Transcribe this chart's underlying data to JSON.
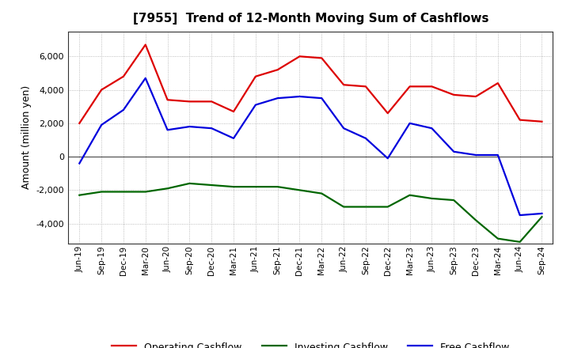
{
  "title": "[7955]  Trend of 12-Month Moving Sum of Cashflows",
  "ylabel": "Amount (million yen)",
  "xlabels": [
    "Jun-19",
    "Sep-19",
    "Dec-19",
    "Mar-20",
    "Jun-20",
    "Sep-20",
    "Dec-20",
    "Mar-21",
    "Jun-21",
    "Sep-21",
    "Dec-21",
    "Mar-22",
    "Jun-22",
    "Sep-22",
    "Dec-22",
    "Mar-23",
    "Jun-23",
    "Sep-23",
    "Dec-23",
    "Mar-24",
    "Jun-24",
    "Sep-24"
  ],
  "operating": [
    2000,
    4000,
    4800,
    6700,
    3400,
    3300,
    3300,
    2700,
    4800,
    5200,
    6000,
    5900,
    4300,
    4200,
    2600,
    4200,
    4200,
    3700,
    3600,
    4400,
    2200,
    2100
  ],
  "investing": [
    -2300,
    -2100,
    -2100,
    -2100,
    -1900,
    -1600,
    -1700,
    -1800,
    -1800,
    -1800,
    -2000,
    -2200,
    -3000,
    -3000,
    -3000,
    -2300,
    -2500,
    -2600,
    -3800,
    -4900,
    -5100,
    -3600
  ],
  "free": [
    -400,
    1900,
    2800,
    4700,
    1600,
    1800,
    1700,
    1100,
    3100,
    3500,
    3600,
    3500,
    1700,
    1100,
    -100,
    2000,
    1700,
    300,
    100,
    100,
    -3500,
    -3400
  ],
  "operating_color": "#dd0000",
  "investing_color": "#006600",
  "free_color": "#0000dd",
  "bg_color": "#ffffff",
  "plot_bg_color": "#ffffff",
  "grid_color": "#aaaaaa",
  "ylim": [
    -5200,
    7500
  ],
  "yticks": [
    -4000,
    -2000,
    0,
    2000,
    4000,
    6000
  ],
  "legend_labels": [
    "Operating Cashflow",
    "Investing Cashflow",
    "Free Cashflow"
  ]
}
